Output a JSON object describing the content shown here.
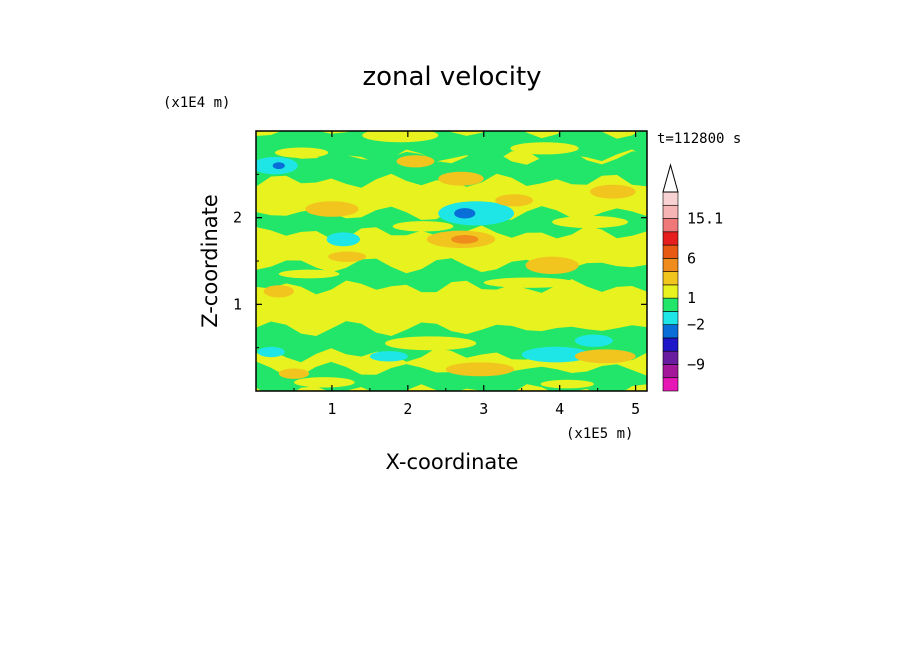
{
  "chart_data": {
    "type": "heatmap",
    "title": "zonal velocity",
    "xlabel": "X-coordinate",
    "ylabel": "Z-coordinate",
    "x_multiplier": "(x1E5 m)",
    "y_multiplier": "(x1E4 m)",
    "time_label": "t=112800 s",
    "xlim": [
      0,
      5.15
    ],
    "ylim": [
      0,
      3.0
    ],
    "x_ticks": [
      "1",
      "2",
      "3",
      "4",
      "5"
    ],
    "y_ticks": [
      "1",
      "2"
    ],
    "grid": false,
    "colorbar": {
      "labels": [
        "15.1",
        "6",
        "1",
        "-2",
        "-9"
      ],
      "levels": [
        {
          "color": "#e617b4"
        },
        {
          "color": "#a5179a"
        },
        {
          "color": "#6a1ca0"
        },
        {
          "color": "#1e16c8"
        },
        {
          "color": "#0a6ed8"
        },
        {
          "color": "#1ee6e6"
        },
        {
          "color": "#22e66a"
        },
        {
          "color": "#e8f21e"
        },
        {
          "color": "#f2c41e"
        },
        {
          "color": "#f08c1c"
        },
        {
          "color": "#e85a14"
        },
        {
          "color": "#e61e1e"
        },
        {
          "color": "#f07878"
        },
        {
          "color": "#f6b4b4"
        },
        {
          "color": "#f8d2d2"
        }
      ]
    },
    "field_background": "#e8f21e",
    "bands": [
      {
        "z0": 2.7,
        "z1": 3.0,
        "color": "#22e66a"
      },
      {
        "z0": 2.42,
        "z1": 2.7,
        "color": "#22e66a"
      },
      {
        "z0": 1.82,
        "z1": 2.05,
        "color": "#22e66a"
      },
      {
        "z0": 1.2,
        "z1": 1.45,
        "color": "#22e66a"
      },
      {
        "z0": 0.42,
        "z1": 0.72,
        "color": "#22e66a"
      },
      {
        "z0": 0.0,
        "z1": 0.25,
        "color": "#22e66a"
      }
    ],
    "patches": [
      {
        "x": 0.25,
        "z": 2.6,
        "rx": 0.3,
        "rz": 0.1,
        "color": "#1ee6e6"
      },
      {
        "x": 0.3,
        "z": 2.6,
        "rx": 0.08,
        "rz": 0.04,
        "color": "#0a6ed8"
      },
      {
        "x": 2.9,
        "z": 2.05,
        "rx": 0.5,
        "rz": 0.14,
        "color": "#1ee6e6"
      },
      {
        "x": 2.75,
        "z": 2.05,
        "rx": 0.14,
        "rz": 0.06,
        "color": "#0a6ed8"
      },
      {
        "x": 1.15,
        "z": 1.75,
        "rx": 0.22,
        "rz": 0.08,
        "color": "#1ee6e6"
      },
      {
        "x": 3.95,
        "z": 0.42,
        "rx": 0.45,
        "rz": 0.09,
        "color": "#1ee6e6"
      },
      {
        "x": 0.2,
        "z": 0.45,
        "rx": 0.18,
        "rz": 0.06,
        "color": "#1ee6e6"
      },
      {
        "x": 4.45,
        "z": 0.58,
        "rx": 0.25,
        "rz": 0.07,
        "color": "#1ee6e6"
      },
      {
        "x": 1.75,
        "z": 0.4,
        "rx": 0.25,
        "rz": 0.06,
        "color": "#1ee6e6"
      },
      {
        "x": 2.7,
        "z": 1.75,
        "rx": 0.45,
        "rz": 0.1,
        "color": "#f2c41e"
      },
      {
        "x": 2.75,
        "z": 1.75,
        "rx": 0.18,
        "rz": 0.05,
        "color": "#f08c1c"
      },
      {
        "x": 1.0,
        "z": 2.1,
        "rx": 0.35,
        "rz": 0.09,
        "color": "#f2c41e"
      },
      {
        "x": 2.7,
        "z": 2.45,
        "rx": 0.3,
        "rz": 0.08,
        "color": "#f2c41e"
      },
      {
        "x": 2.1,
        "z": 2.65,
        "rx": 0.25,
        "rz": 0.07,
        "color": "#f2c41e"
      },
      {
        "x": 3.9,
        "z": 1.45,
        "rx": 0.35,
        "rz": 0.1,
        "color": "#f2c41e"
      },
      {
        "x": 4.6,
        "z": 0.4,
        "rx": 0.4,
        "rz": 0.08,
        "color": "#f2c41e"
      },
      {
        "x": 4.7,
        "z": 2.3,
        "rx": 0.3,
        "rz": 0.08,
        "color": "#f2c41e"
      },
      {
        "x": 0.3,
        "z": 1.15,
        "rx": 0.2,
        "rz": 0.07,
        "color": "#f2c41e"
      },
      {
        "x": 1.2,
        "z": 1.55,
        "rx": 0.25,
        "rz": 0.06,
        "color": "#f2c41e"
      },
      {
        "x": 2.95,
        "z": 0.25,
        "rx": 0.45,
        "rz": 0.08,
        "color": "#f2c41e"
      },
      {
        "x": 0.5,
        "z": 0.2,
        "rx": 0.2,
        "rz": 0.06,
        "color": "#f2c41e"
      },
      {
        "x": 3.4,
        "z": 2.2,
        "rx": 0.25,
        "rz": 0.07,
        "color": "#f2c41e"
      },
      {
        "x": 0.6,
        "z": 2.75,
        "rx": 0.35,
        "rz": 0.06,
        "color": "#e8f21e"
      },
      {
        "x": 1.9,
        "z": 2.95,
        "rx": 0.5,
        "rz": 0.08,
        "color": "#e8f21e"
      },
      {
        "x": 3.8,
        "z": 2.8,
        "rx": 0.45,
        "rz": 0.07,
        "color": "#e8f21e"
      },
      {
        "x": 2.2,
        "z": 1.9,
        "rx": 0.4,
        "rz": 0.06,
        "color": "#e8f21e"
      },
      {
        "x": 4.4,
        "z": 1.95,
        "rx": 0.5,
        "rz": 0.07,
        "color": "#e8f21e"
      },
      {
        "x": 0.7,
        "z": 1.35,
        "rx": 0.4,
        "rz": 0.05,
        "color": "#e8f21e"
      },
      {
        "x": 3.6,
        "z": 1.25,
        "rx": 0.6,
        "rz": 0.06,
        "color": "#e8f21e"
      },
      {
        "x": 2.3,
        "z": 0.55,
        "rx": 0.6,
        "rz": 0.08,
        "color": "#e8f21e"
      },
      {
        "x": 0.9,
        "z": 0.1,
        "rx": 0.4,
        "rz": 0.06,
        "color": "#e8f21e"
      },
      {
        "x": 4.1,
        "z": 0.08,
        "rx": 0.35,
        "rz": 0.05,
        "color": "#e8f21e"
      }
    ]
  }
}
